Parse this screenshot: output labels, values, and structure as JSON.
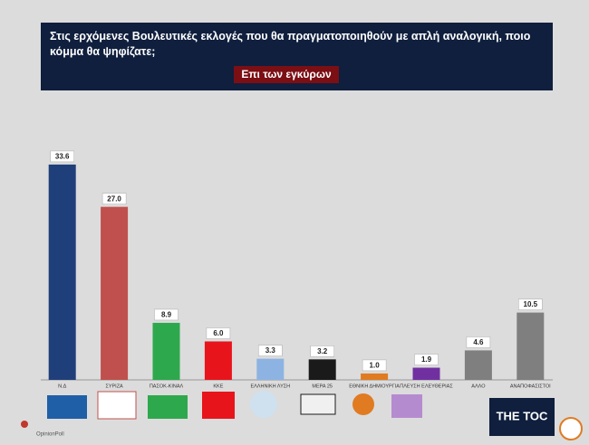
{
  "chart_data": {
    "type": "bar",
    "title": "Στις ερχόμενες Βουλευτικές εκλογές που θα πραγματοποιηθούν με απλή αναλογική, ποιο κόμμα θα ψηφίζατε;",
    "subtitle": "Επι των εγκύρων",
    "categories": [
      "Ν.Δ",
      "ΣΥΡΙΖΑ",
      "ΠΑΣΟΚ-ΚΙΝΑΛ",
      "ΚΚΕ",
      "ΕΛΛΗΝΙΚΗ ΛΥΣΗ",
      "ΜΕΡΑ 25",
      "ΕΘΝΙΚΗ ΔΗΜΙΟΥΡΓΙΑ",
      "ΠΛΕΥΣΗ ΕΛΕΥΘΕΡΙΑΣ",
      "ΑΛΛΟ",
      "ΑΝΑΠΟΦΑΣΙΣΤΟΙ"
    ],
    "values": [
      33.6,
      27.0,
      8.9,
      6.0,
      3.3,
      3.2,
      1.0,
      1.9,
      4.6,
      10.5
    ],
    "value_labels": [
      "33.6",
      "27.0",
      "8.9",
      "6.0",
      "3.3",
      "3.2",
      "1.0",
      "1.9",
      "4.6",
      "10.5"
    ],
    "colors": [
      "#1f3f7a",
      "#c0504d",
      "#2ea84d",
      "#e8141c",
      "#8db3e2",
      "#1a1a1a",
      "#e07b22",
      "#7030a0",
      "#7f7f7f",
      "#7f7f7f"
    ],
    "ylim": [
      0,
      35
    ]
  },
  "branding": {
    "source": "OpinionPoll",
    "publisher": "THE TOC"
  }
}
